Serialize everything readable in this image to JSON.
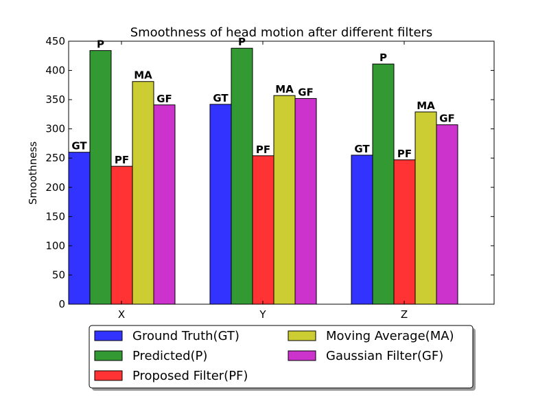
{
  "chart_data": {
    "type": "bar",
    "title": "Smoothness of head motion after different filters",
    "xlabel": "",
    "ylabel": "Smoothness",
    "ylim": [
      0,
      450
    ],
    "yticks": [
      0,
      50,
      100,
      150,
      200,
      250,
      300,
      350,
      400,
      450
    ],
    "categories": [
      "X",
      "Y",
      "Z"
    ],
    "grid": false,
    "legend_position": "bottom",
    "series": [
      {
        "name": "Ground Truth(GT)",
        "label": "GT",
        "color": "#3333ff",
        "values": [
          260,
          342,
          255
        ]
      },
      {
        "name": "Predicted(P)",
        "label": "P",
        "color": "#339933",
        "values": [
          434,
          438,
          411
        ]
      },
      {
        "name": "Proposed Filter(PF)",
        "label": "PF",
        "color": "#ff3333",
        "values": [
          236,
          254,
          247
        ]
      },
      {
        "name": "Moving Average(MA)",
        "label": "MA",
        "color": "#cccc33",
        "values": [
          381,
          357,
          329
        ]
      },
      {
        "name": "Gaussian Filter(GF)",
        "label": "GF",
        "color": "#cc33cc",
        "values": [
          341,
          352,
          307
        ]
      }
    ]
  }
}
